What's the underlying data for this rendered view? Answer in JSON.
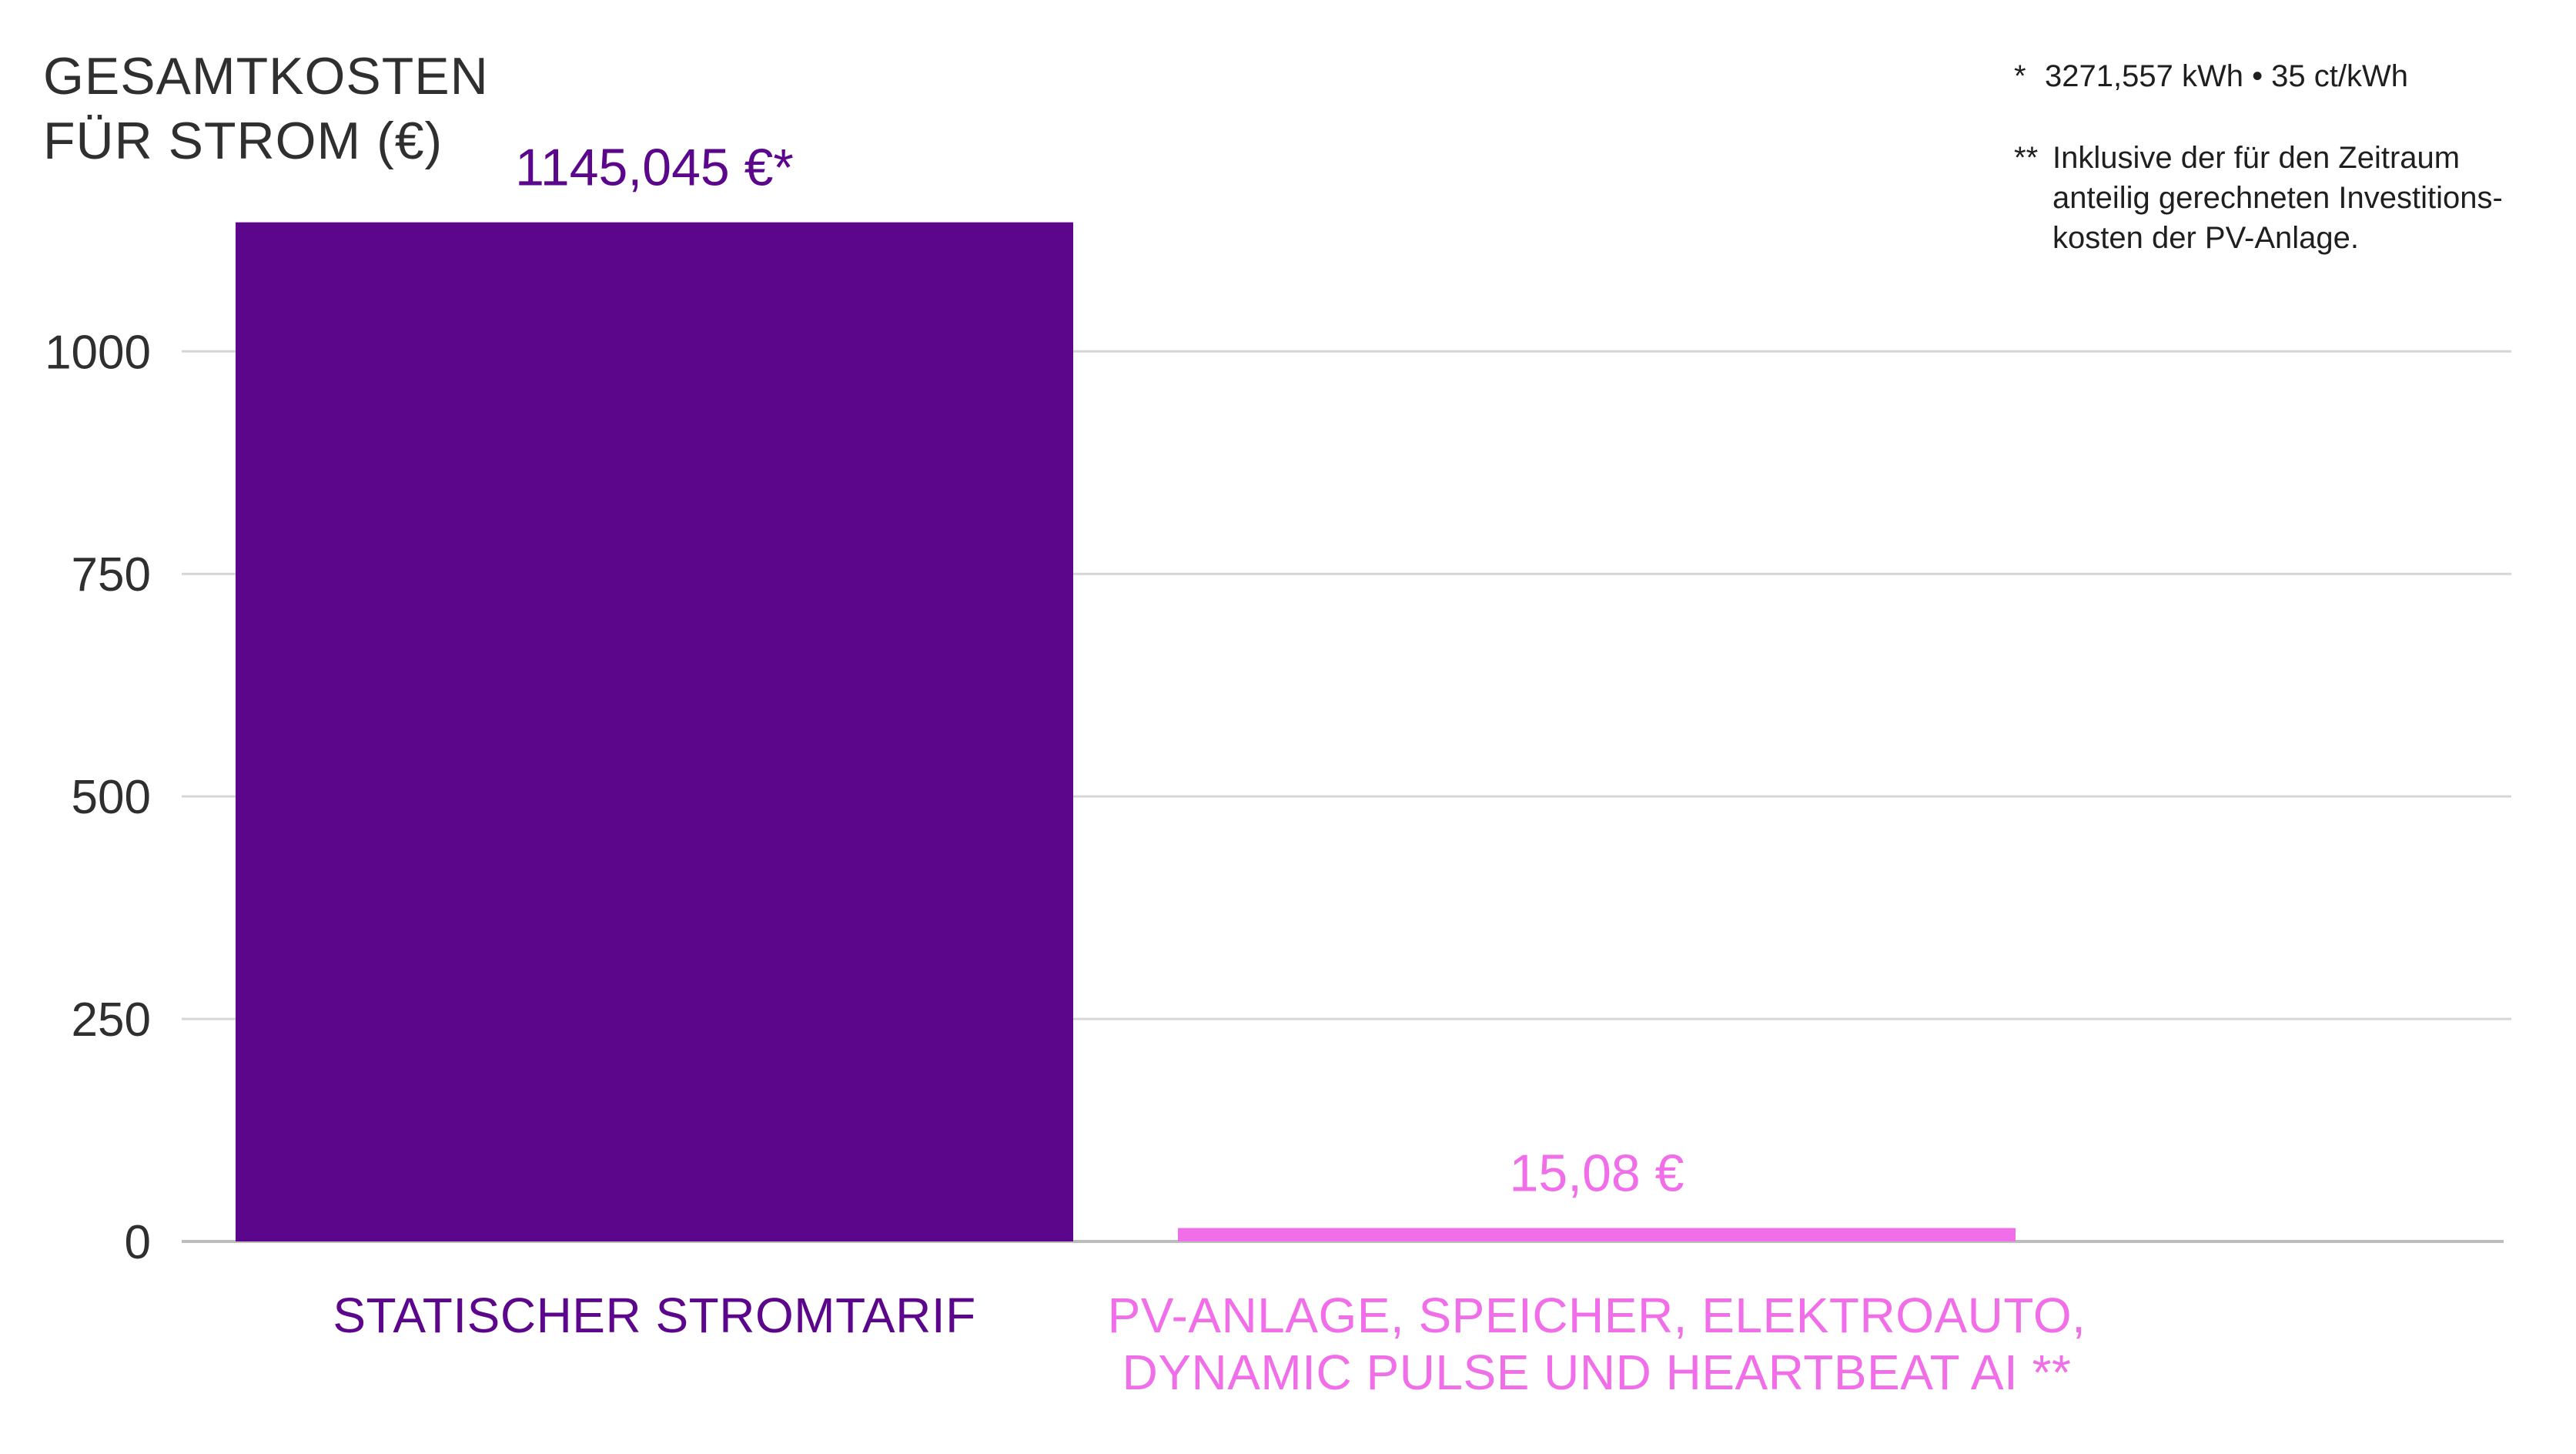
{
  "chart_data": {
    "type": "bar",
    "title": [
      "GESAMTKOSTEN",
      "FÜR STROM (€)"
    ],
    "categories": [
      [
        "STATISCHER  STROMTARIF"
      ],
      [
        "PV-ANLAGE, SPEICHER, ELEKTROAUTO,",
        "DYNAMIC PULSE UND HEARTBEAT AI **"
      ]
    ],
    "values": [
      1145.045,
      15.08
    ],
    "value_labels": [
      "1145,045 €*",
      "15,08 €"
    ],
    "colors": [
      "#5c068c",
      "#f06ee8"
    ],
    "ylim": [
      0,
      1145.045
    ],
    "yticks": [
      0,
      250,
      500,
      750,
      1000
    ],
    "ytick_labels": [
      "0",
      "250",
      "500",
      "750",
      "1000"
    ],
    "grid": true,
    "footnotes": [
      {
        "marker": "*",
        "lines": [
          "3271,557 kWh • 35 ct/kWh"
        ]
      },
      {
        "marker": "**",
        "lines": [
          "Inklusive der für den Zeitraum",
          "anteilig gerechneten Investitions-",
          "kosten der PV-Anlage."
        ]
      }
    ]
  }
}
